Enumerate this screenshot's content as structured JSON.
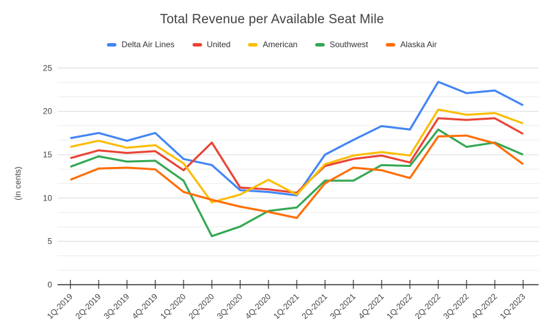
{
  "title": "Total Revenue per Available Seat Mile",
  "background_color": "#ffffff",
  "chart_data": {
    "type": "line",
    "title": "Total Revenue per Available Seat Mile",
    "xlabel": "",
    "ylabel": "(in cents)",
    "ylim": [
      0,
      25
    ],
    "y_major_step": 5,
    "y_minor_divisions": 3,
    "y_tick_labels": [
      "0",
      "5",
      "10",
      "15",
      "20",
      "25"
    ],
    "grid": true,
    "legend_position": "top",
    "categories": [
      "1Q-2019",
      "2Q-2019",
      "3Q-2019",
      "4Q-2019",
      "1Q-2020",
      "2Q-2020",
      "3Q-2020",
      "4Q-2020",
      "1Q-2021",
      "2Q-2021",
      "3Q-2021",
      "4Q-2021",
      "1Q-2022",
      "2Q-2022",
      "3Q-2022",
      "4Q-2022",
      "1Q-2023"
    ],
    "series": [
      {
        "name": "Delta Air Lines",
        "color": "#4285F4",
        "values": [
          16.9,
          17.5,
          16.6,
          17.5,
          14.5,
          13.8,
          10.9,
          10.7,
          10.3,
          15.0,
          16.7,
          18.3,
          17.9,
          23.4,
          22.1,
          22.4,
          20.7
        ]
      },
      {
        "name": "United",
        "color": "#EA4335",
        "values": [
          14.6,
          15.5,
          15.2,
          15.4,
          13.2,
          16.4,
          11.2,
          11.0,
          10.6,
          13.7,
          14.5,
          14.9,
          14.1,
          19.2,
          19.0,
          19.2,
          17.4
        ]
      },
      {
        "name": "American",
        "color": "#FBBC04",
        "values": [
          15.9,
          16.6,
          15.8,
          16.1,
          14.0,
          9.5,
          10.4,
          12.1,
          10.4,
          13.9,
          14.9,
          15.3,
          14.9,
          20.2,
          19.6,
          19.8,
          18.6
        ]
      },
      {
        "name": "Southwest",
        "color": "#34A853",
        "values": [
          13.6,
          14.8,
          14.2,
          14.3,
          12.0,
          5.6,
          6.7,
          8.5,
          8.9,
          12.0,
          12.0,
          13.8,
          13.7,
          17.9,
          15.9,
          16.4,
          15.0
        ]
      },
      {
        "name": "Alaska Air",
        "color": "#FF6D01",
        "values": [
          12.1,
          13.4,
          13.5,
          13.3,
          10.7,
          9.8,
          9.0,
          8.4,
          7.7,
          11.7,
          13.5,
          13.2,
          12.3,
          17.1,
          17.2,
          16.3,
          13.9
        ]
      }
    ]
  },
  "colors": {
    "grid_major": "#d9d9d9",
    "grid_minor": "#ececec",
    "axis_line": "#333333",
    "tick_label": "#444444",
    "axis_title": "#444444",
    "title_text": "#3f3f3f"
  }
}
